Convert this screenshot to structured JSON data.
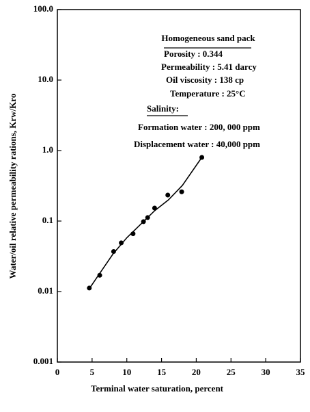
{
  "chart_data": {
    "type": "scatter",
    "xlabel": "Terminal water saturation, percent",
    "ylabel": "Water/oil relative permeability rations, Krw/Kro",
    "annotations": [
      "Homogeneous sand pack",
      "Porosity : 0.344",
      "Permeability : 5.41 darcy",
      "Oil viscosity : 138 cp",
      "Temperature : 25°C",
      "Salinity:",
      "Formation water : 200, 000 ppm",
      "Displacement water : 40,000 ppm"
    ],
    "x": [
      4.6,
      6.1,
      8.1,
      9.2,
      10.9,
      12.4,
      13.0,
      14.0,
      15.9,
      17.9,
      20.8
    ],
    "values": [
      0.0112,
      0.017,
      0.037,
      0.049,
      0.066,
      0.098,
      0.112,
      0.153,
      0.234,
      0.26,
      0.8
    ],
    "curve": {
      "x": [
        4.6,
        6,
        8,
        10,
        12,
        14,
        16,
        18,
        20.8
      ],
      "values": [
        0.011,
        0.0175,
        0.034,
        0.058,
        0.09,
        0.14,
        0.2,
        0.32,
        0.8
      ]
    },
    "color": "#000000",
    "log_y": true,
    "xlim": [
      0,
      35
    ],
    "xticks": [
      0,
      5,
      10,
      15,
      20,
      25,
      30,
      35
    ],
    "ylim": [
      0.001,
      100
    ],
    "yticks": [
      {
        "value": 100,
        "label": "100.0"
      },
      {
        "value": 10,
        "label": "10.0"
      },
      {
        "value": 1,
        "label": "1.0"
      },
      0.1,
      0.01,
      0.001
    ]
  }
}
